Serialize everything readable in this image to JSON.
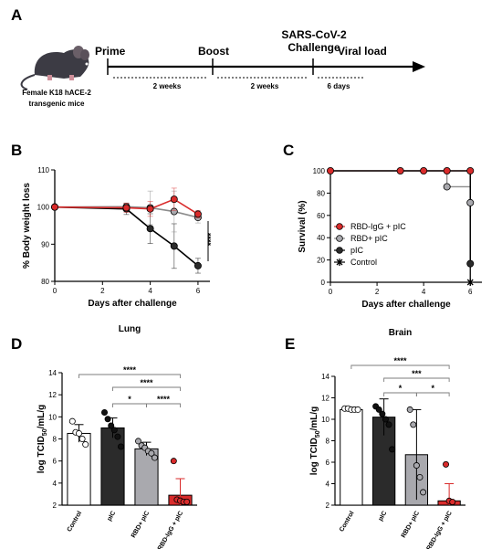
{
  "panels": {
    "A": {
      "letter": "A",
      "mouse_caption": [
        "Female K18 hACE-2",
        "transgenic mice"
      ],
      "events": [
        "Prime",
        "Boost",
        "SARS-CoV-2 Challenge",
        "Viral load"
      ],
      "event_lines": [
        "Prime",
        "Boost",
        "SARS-CoV-2",
        "Challenge",
        "Viral load"
      ],
      "intervals": [
        "2 weeks",
        "2 weeks",
        "6 days"
      ]
    },
    "B": {
      "letter": "B",
      "significance": "****"
    },
    "C": {
      "letter": "C"
    },
    "D": {
      "letter": "D",
      "brackets": [
        {
          "from": "Control",
          "to": "RBD-IgG + pIC",
          "label": "****"
        },
        {
          "from": "pIC",
          "to": "RBD-IgG + pIC",
          "label": "****"
        },
        {
          "from": "pIC",
          "to": "RBD+ pIC",
          "label": "*"
        },
        {
          "from": "RBD+ pIC",
          "to": "RBD-IgG + pIC",
          "label": "****"
        }
      ]
    },
    "E": {
      "letter": "E",
      "brackets": [
        {
          "from": "Control",
          "to": "RBD-IgG + pIC",
          "label": "****"
        },
        {
          "from": "pIC",
          "to": "RBD-IgG + pIC",
          "label": "***"
        },
        {
          "from": "pIC",
          "to": "RBD+ pIC",
          "label": "*"
        },
        {
          "from": "RBD+ pIC",
          "to": "RBD-IgG + pIC",
          "label": "*"
        }
      ]
    }
  },
  "colors": {
    "rbd_igg_pic": "#d92b2b",
    "rbd_pic": "#a9a9ae",
    "pic": "#2b2b2b",
    "control": "#ffffff"
  },
  "chart_data": [
    {
      "id": "B",
      "type": "line",
      "xlabel": "Days after challenge",
      "ylabel": "% Body weight loss",
      "xlim": [
        0,
        6.5
      ],
      "ylim": [
        80,
        110
      ],
      "xticks": [
        0,
        2,
        4,
        6
      ],
      "yticks": [
        80,
        90,
        100,
        110
      ],
      "series": [
        {
          "key": "pic",
          "color": "#000000",
          "x": [
            0,
            3,
            4,
            5,
            6
          ],
          "y": [
            100,
            99.5,
            94.2,
            89.5,
            84.2
          ],
          "err": [
            0,
            1.5,
            4,
            6,
            2
          ]
        },
        {
          "key": "rbd_pic",
          "color": "#8c8c8c",
          "x": [
            0,
            3,
            4,
            5,
            6
          ],
          "y": [
            100,
            100.1,
            99.8,
            98.8,
            97.2
          ],
          "err": [
            0,
            1,
            4.5,
            5.5,
            1.5
          ]
        },
        {
          "key": "rbd_igg_pic",
          "color": "#d92b2b",
          "x": [
            0,
            3,
            4,
            5,
            6
          ],
          "y": [
            100,
            99.8,
            99.5,
            102.1,
            98.1
          ],
          "err": [
            0,
            1.2,
            2,
            3,
            1
          ]
        }
      ]
    },
    {
      "id": "C",
      "type": "line",
      "xlabel": "Days after challenge",
      "ylabel": "Survival (%)",
      "xlim": [
        0,
        6.5
      ],
      "ylim": [
        0,
        100
      ],
      "xticks": [
        0,
        2,
        4,
        6
      ],
      "yticks": [
        0,
        20,
        40,
        60,
        80,
        100
      ],
      "legend_position": "bottom-left",
      "legend": [
        "RBD-IgG + pIC",
        "RBD+ pIC",
        "pIC",
        "Control"
      ],
      "series": [
        {
          "name": "RBD-IgG + pIC",
          "key": "rbd_igg_pic",
          "color": "#d92b2b",
          "steps": [
            [
              0,
              100
            ],
            [
              6,
              100
            ]
          ],
          "markers": [
            [
              0,
              100
            ],
            [
              3,
              100
            ],
            [
              4,
              100
            ],
            [
              5,
              100
            ],
            [
              6,
              100
            ]
          ]
        },
        {
          "name": "RBD+ pIC",
          "key": "rbd_pic",
          "color": "#8c8c8c",
          "steps": [
            [
              0,
              100
            ],
            [
              5,
              100
            ],
            [
              5,
              85.7
            ],
            [
              6,
              85.7
            ],
            [
              6,
              71.4
            ]
          ],
          "markers": [
            [
              5,
              85.7
            ],
            [
              6,
              71.4
            ]
          ]
        },
        {
          "name": "pIC",
          "key": "pic",
          "color": "#000000",
          "steps": [
            [
              0,
              100
            ],
            [
              6,
              100
            ],
            [
              6,
              16.7
            ]
          ],
          "markers": [
            [
              6,
              16.7
            ]
          ]
        },
        {
          "name": "Control",
          "key": "control",
          "color": "#000000",
          "steps": [
            [
              0,
              100
            ],
            [
              6,
              100
            ],
            [
              6,
              0
            ]
          ],
          "markers": [
            [
              6,
              0
            ]
          ]
        }
      ]
    },
    {
      "id": "D",
      "type": "bar",
      "title": "Lung",
      "ylabel": "log TCID50/mL/g",
      "ylim": [
        2,
        14
      ],
      "yticks": [
        2,
        4,
        6,
        8,
        10,
        12,
        14
      ],
      "categories": [
        "Control",
        "pIC",
        "RBD+ pIC",
        "RBD-IgG + pIC"
      ],
      "values": [
        8.5,
        9.0,
        7.1,
        2.9
      ],
      "errors": [
        0.8,
        0.9,
        0.6,
        1.5
      ],
      "points": [
        [
          9.6,
          8.6,
          8.5,
          8.0,
          7.5
        ],
        [
          10.4,
          9.8,
          9.2,
          8.8,
          8.2,
          7.3
        ],
        [
          7.8,
          7.4,
          7.2,
          6.9,
          6.7,
          6.3
        ],
        [
          6.0,
          2.5,
          2.4,
          2.3,
          2.3
        ]
      ]
    },
    {
      "id": "E",
      "type": "bar",
      "title": "Brain",
      "ylabel": "log TCID50/mL/g",
      "ylim": [
        2,
        14
      ],
      "yticks": [
        2,
        4,
        6,
        8,
        10,
        12,
        14
      ],
      "categories": [
        "Control",
        "pIC",
        "RBD+ pIC",
        "RBD-IgG + pIC"
      ],
      "values": [
        10.9,
        10.2,
        6.7,
        2.4
      ],
      "errors": [
        0.1,
        1.7,
        4.2,
        1.6
      ],
      "points": [
        [
          11.0,
          11.0,
          10.9,
          10.9,
          10.9
        ],
        [
          11.2,
          10.9,
          10.5,
          10.0,
          9.5,
          7.2
        ],
        [
          10.9,
          9.5,
          5.7,
          4.6,
          3.2
        ],
        [
          5.8,
          2.4,
          2.3
        ]
      ]
    }
  ]
}
